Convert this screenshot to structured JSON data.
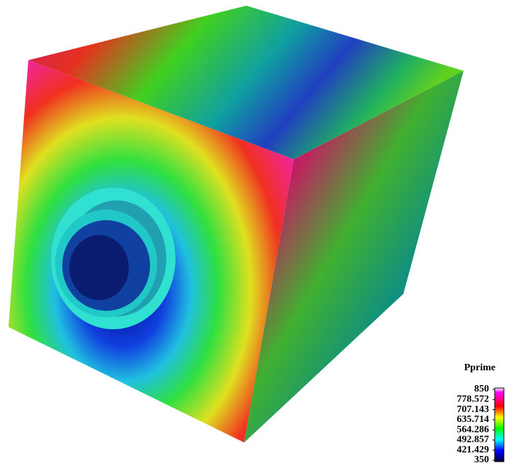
{
  "chart_data": {
    "type": "colorbar",
    "title": "Pprime",
    "ylim": [
      350,
      850
    ],
    "yticks": [
      850,
      778.572,
      707.143,
      635.714,
      564.286,
      492.857,
      421.429,
      350
    ]
  }
}
